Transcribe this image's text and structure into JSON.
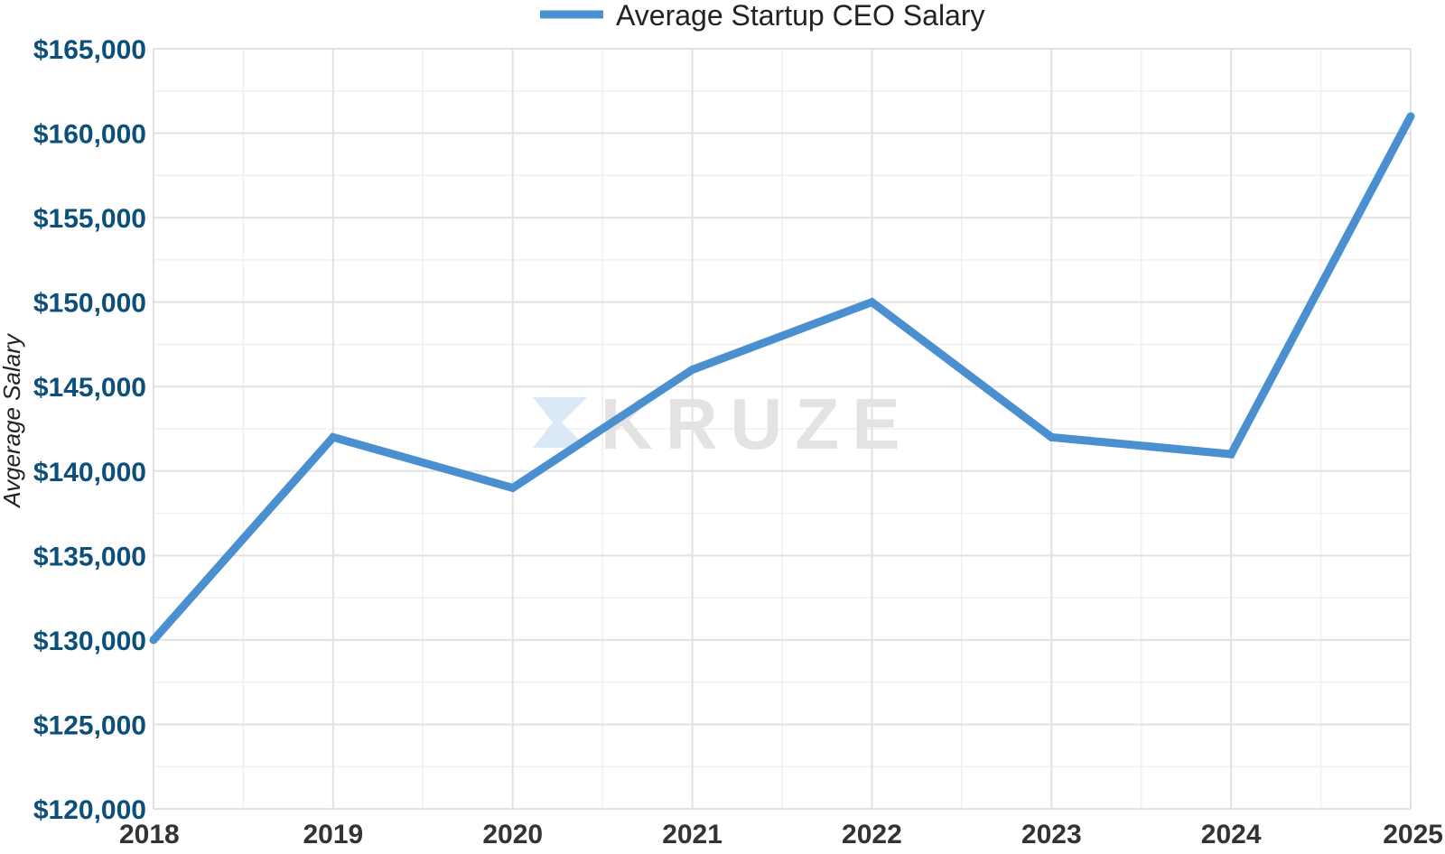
{
  "chart_data": {
    "type": "line",
    "categories": [
      "2018",
      "2019",
      "2020",
      "2021",
      "2022",
      "2023",
      "2024",
      "2025"
    ],
    "series": [
      {
        "name": "Average Startup CEO Salary",
        "values": [
          130000,
          142000,
          139000,
          146000,
          150000,
          142000,
          141000,
          161000
        ]
      }
    ],
    "ylabel": "Avgerage Salary",
    "xlabel": "",
    "ylim": [
      120000,
      165000
    ],
    "yticks": [
      {
        "value": 120000,
        "label": "$120,000"
      },
      {
        "value": 125000,
        "label": "$125,000"
      },
      {
        "value": 130000,
        "label": "$130,000"
      },
      {
        "value": 135000,
        "label": "$135,000"
      },
      {
        "value": 140000,
        "label": "$140,000"
      },
      {
        "value": 145000,
        "label": "$145,000"
      },
      {
        "value": 150000,
        "label": "$150,000"
      },
      {
        "value": 155000,
        "label": "$155,000"
      },
      {
        "value": 160000,
        "label": "$160,000"
      },
      {
        "value": 165000,
        "label": "$165,000"
      }
    ],
    "grid": true,
    "legend_position": "top-center",
    "line_color": "#4a90d0",
    "watermark": "KRUZE"
  }
}
